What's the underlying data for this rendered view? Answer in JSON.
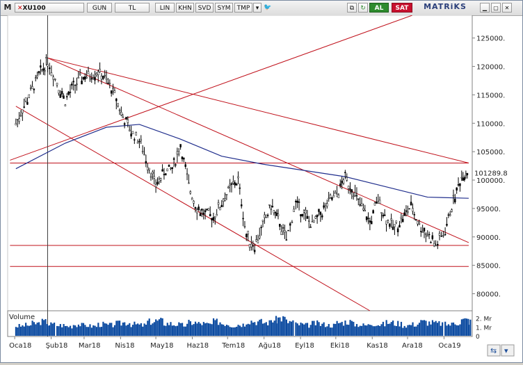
{
  "toolbar": {
    "symbol": "XU100",
    "period": "GUN",
    "currency": "TL",
    "scale": "LIN",
    "buttons": [
      "KHN",
      "SVD",
      "SYM",
      "TMP"
    ],
    "buy_label": "AL",
    "sell_label": "SAT",
    "brand": "MATRiKS",
    "icons": [
      "m-logo-icon",
      "close-x-icon",
      "dropdown-icon",
      "twitter-icon",
      "copy-icon",
      "refresh-icon",
      "minimize-icon",
      "maximize-icon",
      "window-close-icon"
    ]
  },
  "volume_panel": {
    "label": "Volume",
    "tick_labels": [
      "2. Mr",
      "1. Mr",
      "0"
    ]
  },
  "colors": {
    "price": "#000000",
    "moving_average": "#1f2d8c",
    "trendlines": "#c0101a",
    "volume": "#0b4aa0",
    "last_price_label": "#000000"
  },
  "chart_data": {
    "type": "line",
    "subtype": "candlestick-daily",
    "title": "",
    "xlabel": "",
    "ylabel": "",
    "x_tick_labels": [
      "Oca18",
      "Şub18",
      "Mar18",
      "Nis18",
      "May18",
      "Haz18",
      "Tem18",
      "Ağu18",
      "Eyl18",
      "Eki18",
      "Kas18",
      "Ara18",
      "Oca19"
    ],
    "y_tick_labels": [
      "125000.",
      "120000.",
      "115000.",
      "110000.",
      "105000.",
      "100000.",
      "95000.",
      "90000.",
      "85000.",
      "80000."
    ],
    "y_ticks": [
      125000,
      120000,
      115000,
      110000,
      105000,
      100000,
      95000,
      90000,
      85000,
      80000
    ],
    "ylim": [
      77000,
      129000
    ],
    "last_price_label": "101289.8",
    "grid": false,
    "series": [
      {
        "name": "XU100",
        "x": [
          "2018-01-02",
          "2018-01-09",
          "2018-01-16",
          "2018-01-23",
          "2018-01-29",
          "2018-02-06",
          "2018-02-13",
          "2018-02-20",
          "2018-02-27",
          "2018-03-06",
          "2018-03-13",
          "2018-03-20",
          "2018-03-27",
          "2018-04-03",
          "2018-04-10",
          "2018-04-17",
          "2018-04-24",
          "2018-05-01",
          "2018-05-08",
          "2018-05-15",
          "2018-05-22",
          "2018-05-29",
          "2018-06-05",
          "2018-06-12",
          "2018-06-19",
          "2018-06-26",
          "2018-07-03",
          "2018-07-10",
          "2018-07-17",
          "2018-07-24",
          "2018-07-31",
          "2018-08-07",
          "2018-08-13",
          "2018-08-20",
          "2018-08-28",
          "2018-09-04",
          "2018-09-11",
          "2018-09-18",
          "2018-09-25",
          "2018-10-02",
          "2018-10-09",
          "2018-10-16",
          "2018-10-23",
          "2018-10-30",
          "2018-11-06",
          "2018-11-13",
          "2018-11-20",
          "2018-11-27",
          "2018-12-04",
          "2018-12-11",
          "2018-12-18",
          "2018-12-25",
          "2019-01-02",
          "2019-01-09",
          "2019-01-16",
          "2019-01-22"
        ],
        "values": [
          110000,
          113000,
          116000,
          119000,
          121000,
          117000,
          114000,
          116500,
          118000,
          118500,
          119000,
          117500,
          115000,
          111000,
          108500,
          107000,
          103000,
          99000,
          101500,
          102000,
          106000,
          99000,
          95000,
          94000,
          93500,
          96000,
          98500,
          100000,
          90000,
          88500,
          92000,
          95500,
          93000,
          89500,
          96000,
          94000,
          92000,
          94000,
          96000,
          97500,
          100500,
          98000,
          95000,
          92500,
          96500,
          93000,
          91500,
          93500,
          95500,
          92000,
          90500,
          88500,
          91000,
          96500,
          100500,
          102000
        ]
      },
      {
        "name": "MA200",
        "x": [
          "2018-01-02",
          "2018-02-13",
          "2018-03-20",
          "2018-04-17",
          "2018-05-22",
          "2018-06-26",
          "2018-07-31",
          "2018-09-04",
          "2018-10-09",
          "2018-11-13",
          "2018-12-18",
          "2019-01-22"
        ],
        "values": [
          102000,
          106500,
          109300,
          109800,
          107200,
          104200,
          102800,
          101700,
          100600,
          98800,
          97000,
          96800
        ]
      }
    ],
    "trendlines": [
      {
        "from": [
          "2017-12-28",
          103000
        ],
        "to": [
          "2019-01-22",
          103000
        ]
      },
      {
        "from": [
          "2018-01-29",
          121500
        ],
        "to": [
          "2019-01-22",
          103000
        ]
      },
      {
        "from": [
          "2018-01-02",
          113000
        ],
        "to": [
          "2018-10-30",
          77000
        ]
      },
      {
        "from": [
          "2018-01-29",
          121500
        ],
        "to": [
          "2019-01-22",
          89000
        ]
      },
      {
        "from": [
          "2017-12-28",
          103500
        ],
        "to": [
          "2018-12-05",
          129000
        ]
      },
      {
        "from": [
          "2017-12-28",
          88500
        ],
        "to": [
          "2019-01-22",
          88500
        ]
      },
      {
        "from": [
          "2017-12-28",
          84800
        ],
        "to": [
          "2019-01-22",
          84800
        ]
      }
    ],
    "vertical_marker": "2018-01-29",
    "volume": {
      "ylim": [
        0,
        2.6
      ],
      "unit": "Mr",
      "values": [
        1.1,
        1.2,
        1.4,
        1.6,
        1.3,
        1.2,
        1.1,
        1.3,
        1.2,
        1.1,
        1.3,
        1.2,
        1.4,
        1.5,
        1.3,
        1.2,
        1.6,
        1.7,
        1.4,
        1.3,
        1.2,
        1.5,
        1.4,
        1.3,
        1.6,
        1.4,
        1.2,
        1.3,
        1.7,
        1.6,
        1.5,
        1.8,
        2.0,
        1.6,
        1.3,
        1.2,
        1.4,
        1.3,
        1.2,
        1.5,
        1.6,
        1.3,
        1.2,
        1.4,
        1.3,
        1.5,
        1.4,
        1.2,
        1.3,
        1.6,
        1.5,
        1.4,
        1.3,
        1.5,
        1.8,
        1.6
      ]
    }
  }
}
